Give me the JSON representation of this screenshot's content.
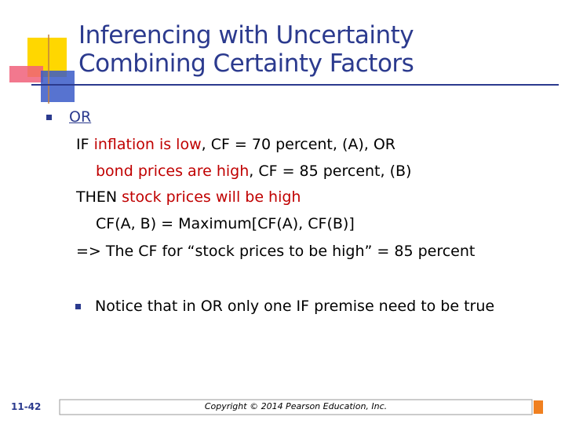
{
  "title": {
    "lines": [
      "Inferencing with Uncertainty",
      "Combining Certainty Factors"
    ]
  },
  "body": {
    "bullet": "OR",
    "lines": [
      [
        {
          "text": "IF "
        },
        {
          "text": "inflation is low",
          "color": "#c00000"
        },
        {
          "text": ", CF = 70 percent, (A), OR"
        }
      ],
      [
        {
          "text": "bond prices are high",
          "color": "#c00000"
        },
        {
          "text": ", CF = 85 percent, (B)"
        }
      ],
      [
        {
          "text": "THEN "
        },
        {
          "text": "stock prices will be high",
          "color": "#c00000"
        }
      ],
      [
        {
          "text": "CF(A, B) = Maximum[CF(A), CF(B)]"
        }
      ],
      [
        {
          "text": "=> The CF for “stock prices to be high” = 85 percent"
        }
      ]
    ],
    "note": "Notice that in OR only one IF premise need to be true"
  },
  "footer": {
    "page": "11-42",
    "copyright": "Copyright © 2014 Pearson Education, Inc."
  }
}
